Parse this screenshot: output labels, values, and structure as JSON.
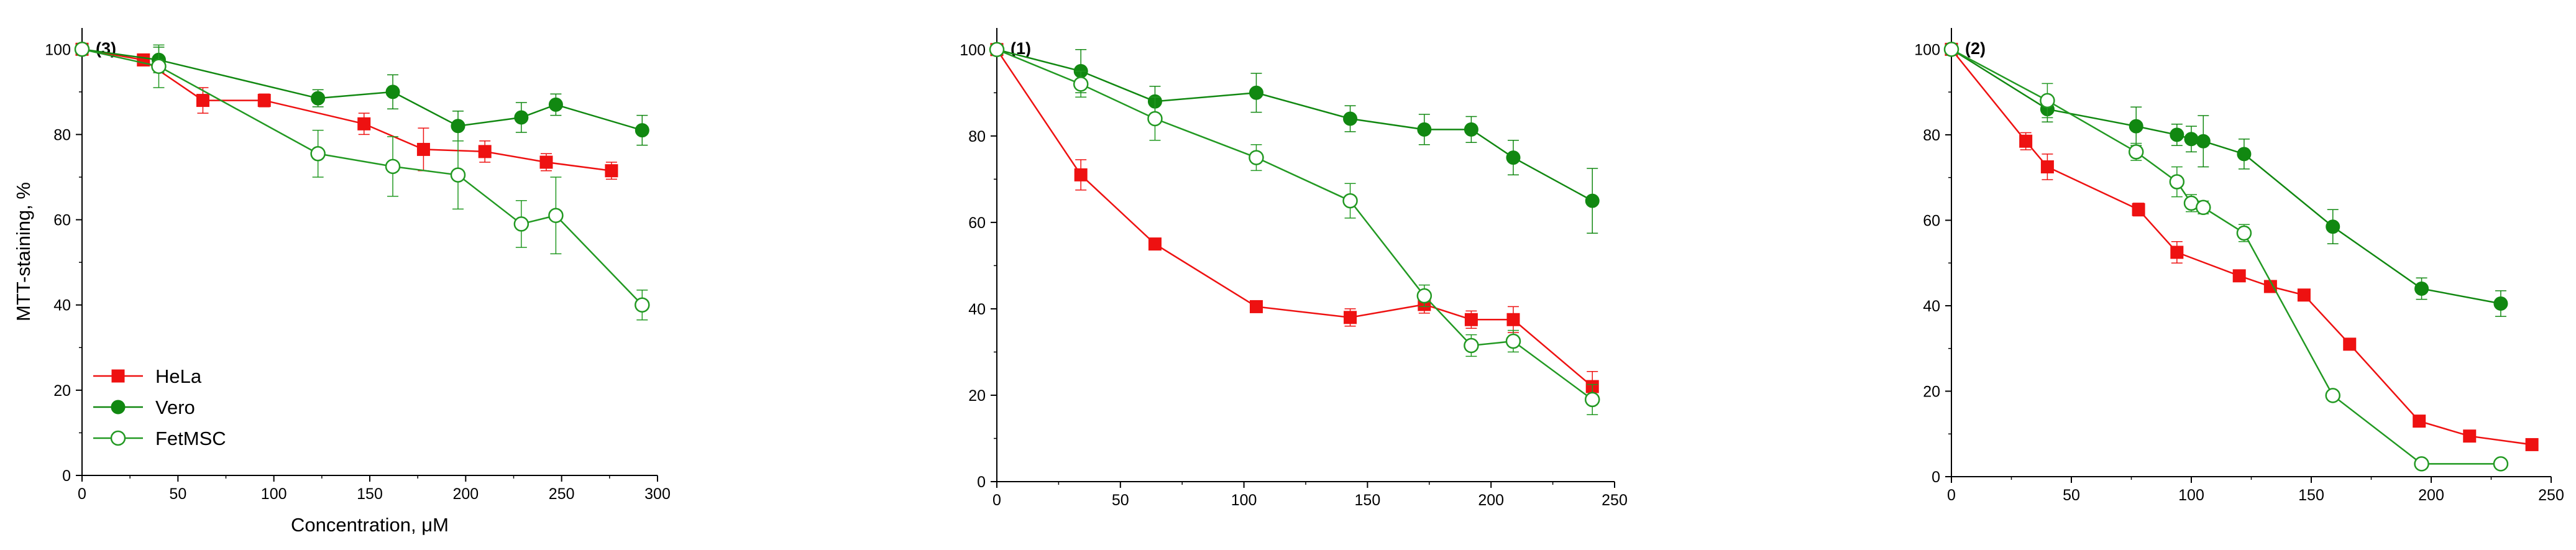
{
  "series_styles": [
    {
      "name": "HeLa",
      "color": "#ee1111",
      "marker": "square-filled"
    },
    {
      "name": "Vero",
      "color": "#118811",
      "marker": "circle-filled"
    },
    {
      "name": "FetMSC",
      "color": "#229922",
      "marker": "circle-open"
    }
  ],
  "chart_data": [
    {
      "type": "line",
      "panel_label": "(3)",
      "xlabel": "Concentration, μM",
      "ylabel": "MTT-staining, %",
      "xlim": [
        0,
        300
      ],
      "ylim": [
        0,
        105
      ],
      "xticks": [
        0,
        50,
        100,
        150,
        200,
        250,
        300
      ],
      "yticks": [
        0,
        20,
        40,
        60,
        80,
        100
      ],
      "legend": {
        "position": "bottom-left",
        "entries": [
          "HeLa",
          "Vero",
          "FetMSC"
        ]
      },
      "series": [
        {
          "name": "HeLa",
          "x": [
            0,
            32,
            63,
            95,
            147,
            178,
            210,
            242,
            276
          ],
          "y": [
            100,
            97.5,
            88,
            88,
            82.5,
            76.5,
            76,
            73.5,
            71.5
          ],
          "err": [
            1,
            1,
            3,
            1.5,
            2.5,
            5,
            2.5,
            2,
            2
          ]
        },
        {
          "name": "Vero",
          "x": [
            0,
            40,
            123,
            162,
            196,
            229,
            247,
            292
          ],
          "y": [
            100,
            97.5,
            88.5,
            90,
            82,
            84,
            87,
            81
          ],
          "err": [
            1,
            3,
            2,
            4,
            3.5,
            3.5,
            2.5,
            3.5
          ]
        },
        {
          "name": "FetMSC",
          "x": [
            0,
            40,
            123,
            162,
            196,
            229,
            247,
            292
          ],
          "y": [
            100,
            96,
            75.5,
            72.5,
            70.5,
            59,
            61,
            40
          ],
          "err": [
            1,
            5,
            5.5,
            7,
            8,
            5.5,
            9,
            3.5
          ]
        }
      ]
    },
    {
      "type": "line",
      "panel_label": "(1)",
      "xlabel": "",
      "ylabel": "",
      "xlim": [
        0,
        250
      ],
      "ylim": [
        0,
        105
      ],
      "xticks": [
        0,
        50,
        100,
        150,
        200,
        250
      ],
      "yticks": [
        0,
        20,
        40,
        60,
        80,
        100
      ],
      "series": [
        {
          "name": "HeLa",
          "x": [
            0,
            34,
            64,
            105,
            143,
            173,
            192,
            209,
            241
          ],
          "y": [
            100,
            71,
            55,
            40.5,
            38,
            41,
            37.5,
            37.5,
            22
          ],
          "err": [
            1,
            3.5,
            1,
            1,
            2,
            2,
            2,
            3,
            3.5
          ]
        },
        {
          "name": "Vero",
          "x": [
            0,
            34,
            64,
            105,
            143,
            173,
            192,
            209,
            241
          ],
          "y": [
            100,
            95,
            88,
            90,
            84,
            81.5,
            81.5,
            75,
            65
          ],
          "err": [
            1,
            5,
            3.5,
            4.5,
            3,
            3.5,
            3,
            4,
            7.5
          ]
        },
        {
          "name": "FetMSC",
          "x": [
            0,
            34,
            64,
            105,
            143,
            173,
            192,
            209,
            241
          ],
          "y": [
            100,
            92,
            84,
            75,
            65,
            43,
            31.5,
            32.5,
            19
          ],
          "err": [
            1,
            3,
            5,
            3,
            4,
            2.5,
            2.5,
            2.5,
            3.5
          ]
        }
      ]
    },
    {
      "type": "line",
      "panel_label": "(2)",
      "xlabel": "",
      "ylabel": "",
      "xlim": [
        0,
        250
      ],
      "ylim": [
        0,
        105
      ],
      "xticks": [
        0,
        50,
        100,
        150,
        200,
        250
      ],
      "yticks": [
        0,
        20,
        40,
        60,
        80,
        100
      ],
      "series": [
        {
          "name": "HeLa",
          "x": [
            0,
            31,
            40,
            78,
            94,
            120,
            133,
            147,
            166,
            195,
            216,
            242
          ],
          "y": [
            100,
            78.5,
            72.5,
            62.5,
            52.5,
            47,
            44.5,
            42.5,
            31,
            13,
            9.5,
            7.5
          ],
          "err": [
            1,
            2,
            3,
            1.5,
            2.5,
            1,
            1,
            1,
            1,
            1,
            1,
            1
          ]
        },
        {
          "name": "Vero",
          "x": [
            0,
            40,
            77,
            94,
            100,
            105,
            122,
            159,
            196,
            229
          ],
          "y": [
            100,
            86,
            82,
            80,
            79,
            78.5,
            75.5,
            58.5,
            44,
            40.5
          ],
          "err": [
            1,
            3,
            4.5,
            2.5,
            3,
            6,
            3.5,
            4,
            2.5,
            3
          ]
        },
        {
          "name": "FetMSC",
          "x": [
            0,
            40,
            77,
            94,
            100,
            105,
            122,
            159,
            196,
            229
          ],
          "y": [
            100,
            88,
            76,
            69,
            64,
            63,
            57,
            19,
            3,
            3
          ],
          "err": [
            1,
            4,
            2,
            3.5,
            2,
            1.5,
            2,
            1,
            1,
            1
          ]
        }
      ]
    }
  ]
}
